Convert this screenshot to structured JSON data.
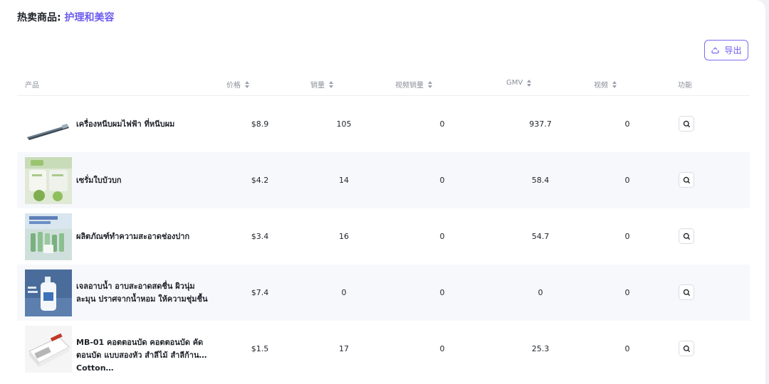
{
  "header": {
    "label": "热卖商品:",
    "category": "护理和美容"
  },
  "toolbar": {
    "export_label": "导出",
    "export_icon": "export-icon"
  },
  "table": {
    "columns": {
      "product": "产品",
      "price": "价格",
      "sales": "销量",
      "video_sales": "视频销量",
      "gmv": "GMV",
      "videos": "视频",
      "actions": "功能"
    },
    "rows": [
      {
        "name": "เครื่องหนีบผมไฟฟ้า ที่หนีบผม",
        "price": "$8.9",
        "sales": "105",
        "video_sales": "0",
        "gmv": "937.7",
        "videos": "0",
        "thumb": "hair-straightener"
      },
      {
        "name": "เซรั่มใบบัวบก",
        "price": "$4.2",
        "sales": "14",
        "video_sales": "0",
        "gmv": "58.4",
        "videos": "0",
        "thumb": "serum"
      },
      {
        "name": "ผลิตภัณฑ์ทำความสะอาดช่องปาก",
        "price": "$3.4",
        "sales": "16",
        "video_sales": "0",
        "gmv": "54.7",
        "videos": "0",
        "thumb": "toothpaste"
      },
      {
        "name": "เจลอาบน้ำ อาบสะอาดสดชื่น ผิวนุ่มละมุน ปราศจากน้ำหอม ให้ความชุ่มชื้น",
        "price": "$7.4",
        "sales": "0",
        "video_sales": "0",
        "gmv": "0",
        "videos": "0",
        "thumb": "shower-gel"
      },
      {
        "name": "MB-01 คอตตอนบัด คอตตอนบัด คัดตอนบัด แบบสองหัว สำลีไม้ สำลีก้าน Cotton…",
        "price": "$1.5",
        "sales": "17",
        "video_sales": "0",
        "gmv": "25.3",
        "videos": "0",
        "thumb": "cotton-buds"
      }
    ]
  },
  "colors": {
    "accent": "#6b5cf0",
    "row_alt": "#f7f8fc",
    "background": "#f0f1f6"
  }
}
